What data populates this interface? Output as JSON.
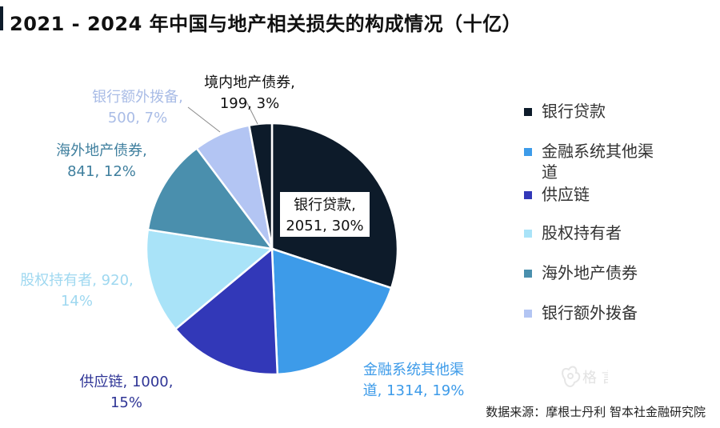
{
  "title": "2021 - 2024 年中国与地产相关损失的构成情况（十亿）",
  "source": "数据来源：摩根士丹利  智本社金融研究院",
  "chart_data": {
    "type": "pie",
    "title": "2021 - 2024 年中国与地产相关损失的构成情况（十亿）",
    "slices": [
      {
        "name": "银行贷款",
        "value": 2051,
        "percent": "30%",
        "label_line1": "银行贷款,",
        "label_line2": "2051, 30%",
        "color": "#0d1b2a",
        "label_color": "#111111"
      },
      {
        "name": "金融系统其他渠道",
        "value": 1314,
        "percent": "19%",
        "label_line1": "金融系统其他渠",
        "label_line2": "道, 1314, 19%",
        "color": "#3d9be9",
        "label_color": "#3d9be9"
      },
      {
        "name": "供应链",
        "value": 1000,
        "percent": "15%",
        "label_line1": "供应链, 1000,",
        "label_line2": "15%",
        "color": "#3238b8",
        "label_color": "#2f3596"
      },
      {
        "name": "股权持有者",
        "value": 920,
        "percent": "14%",
        "label_line1": "股权持有者, 920,",
        "label_line2": "14%",
        "color": "#a9e3f8",
        "label_color": "#9fd8f0"
      },
      {
        "name": "海外地产债券",
        "value": 841,
        "percent": "12%",
        "label_line1": "海外地产债券,",
        "label_line2": "841, 12%",
        "color": "#4a8fad",
        "label_color": "#3f7f9e"
      },
      {
        "name": "银行额外拨备",
        "value": 500,
        "percent": "7%",
        "label_line1": "银行额外拨备,",
        "label_line2": "500, 7%",
        "color": "#b3c5f3",
        "label_color": "#a9bce6"
      },
      {
        "name": "境内地产债券",
        "value": 199,
        "percent": "3%",
        "label_line1": "境内地产债券,",
        "label_line2": "199, 3%",
        "color": "#0d1b2a",
        "label_color": "#111111"
      }
    ],
    "legend": {
      "position": "right",
      "items": [
        {
          "label": "银行贷款",
          "color": "#0d1b2a"
        },
        {
          "label": "金融系统其他渠道",
          "color": "#3d9be9"
        },
        {
          "label": "供应链",
          "color": "#3238b8"
        },
        {
          "label": "股权持有者",
          "color": "#a9e3f8"
        },
        {
          "label": "海外地产债券",
          "color": "#4a8fad"
        },
        {
          "label": "银行额外拨备",
          "color": "#b3c5f3"
        }
      ]
    }
  },
  "watermark": {
    "icon": "flower-logo-icon",
    "text": "格 言"
  }
}
